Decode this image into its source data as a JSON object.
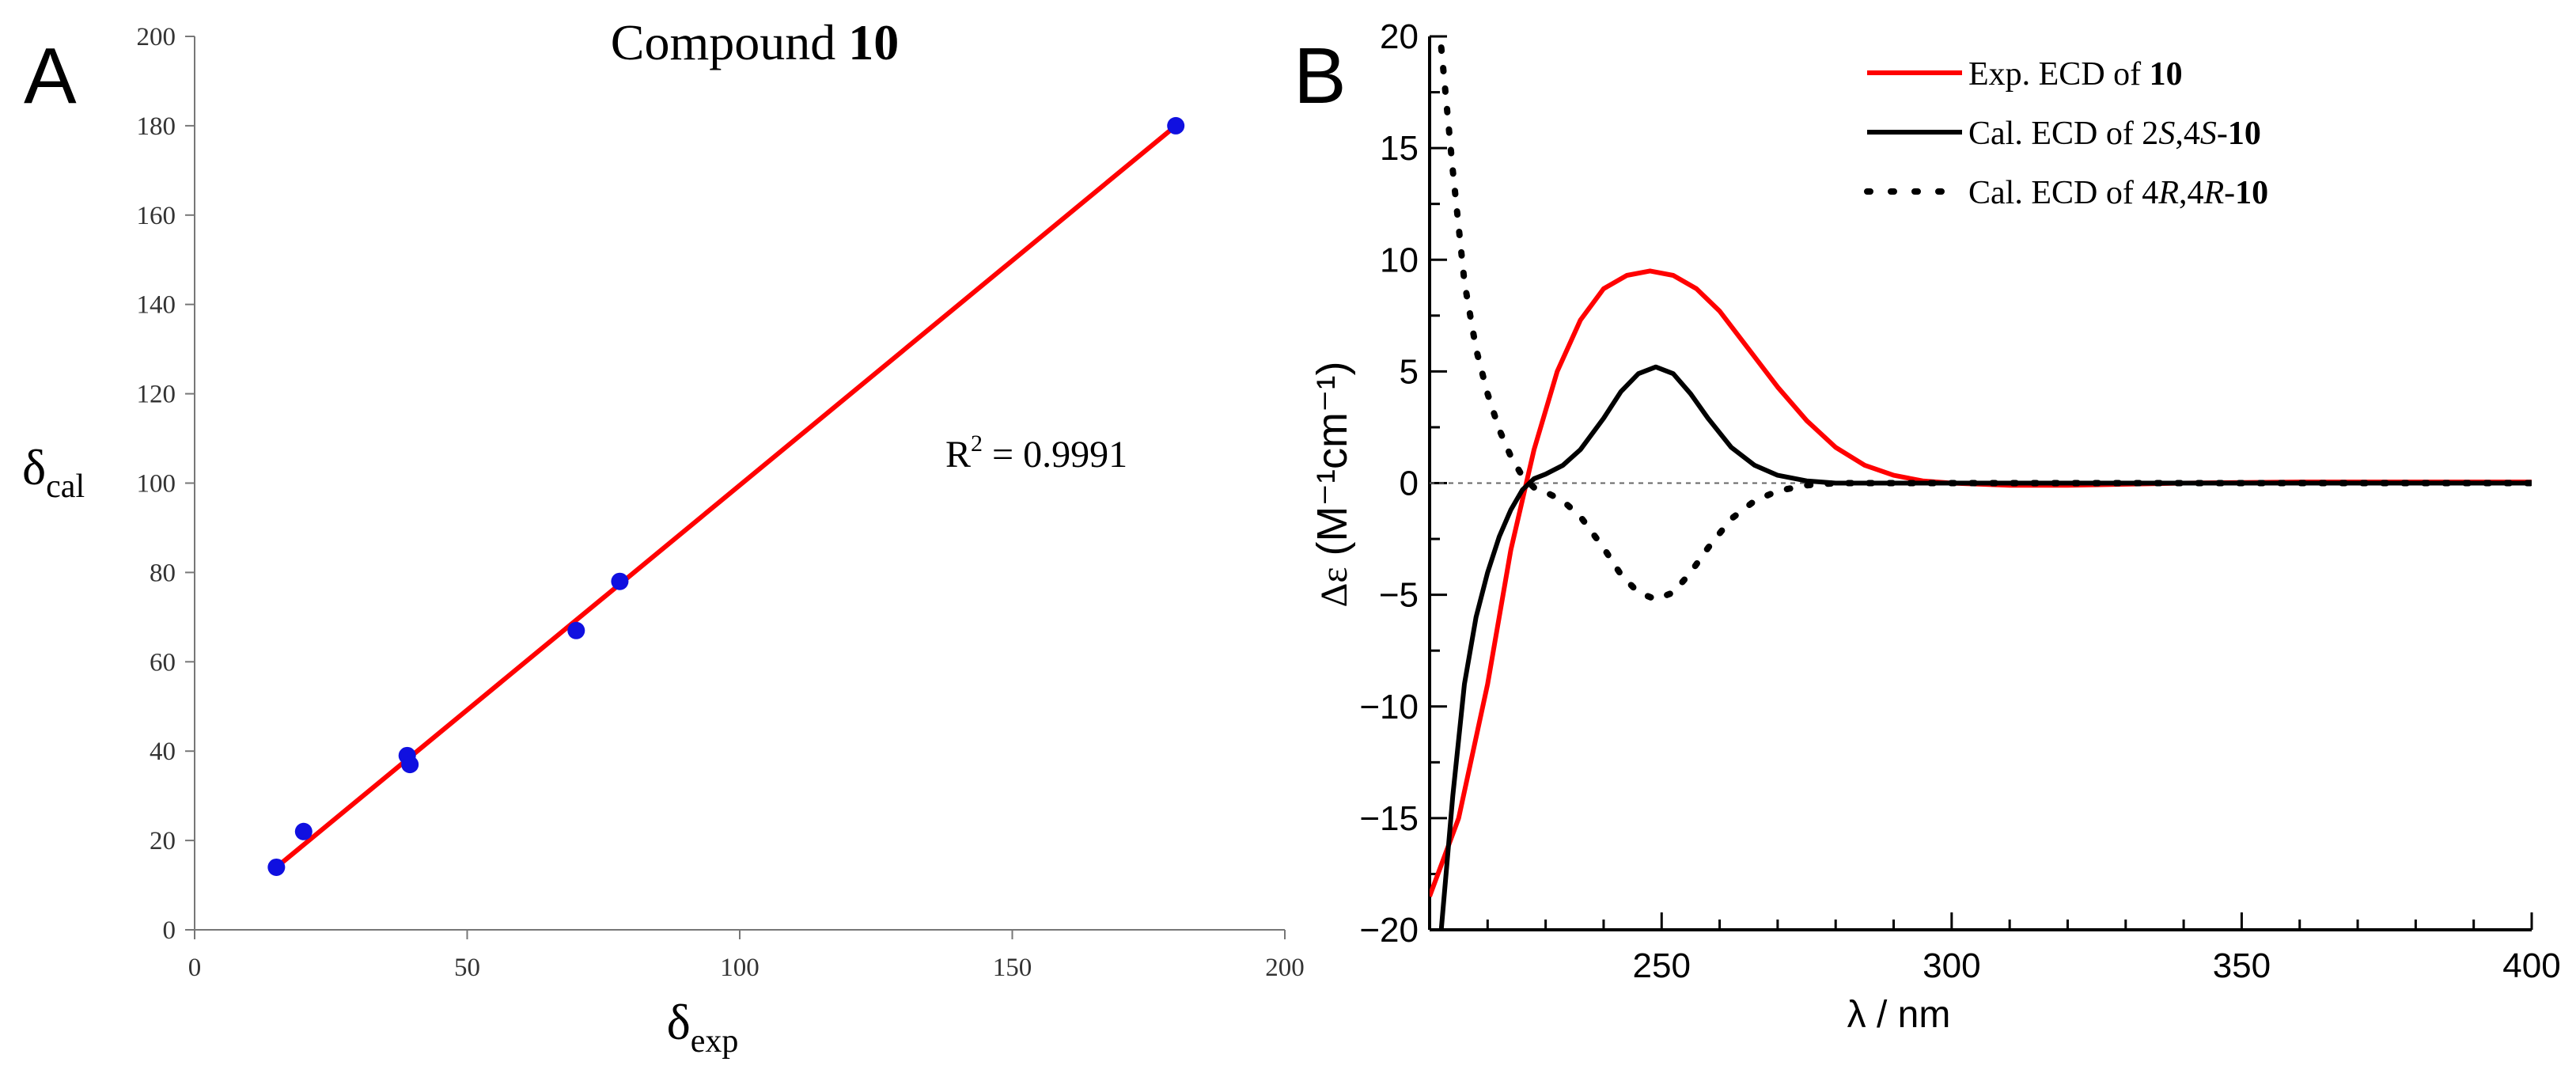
{
  "chart_data": [
    {
      "panel": "A",
      "type": "scatter",
      "title_prefix": "Compound ",
      "title_bold": "10",
      "xlabel_main": "δ",
      "xlabel_sub": "exp",
      "ylabel_main": "δ",
      "ylabel_sub": "cal",
      "xlim": [
        0,
        200
      ],
      "ylim": [
        0,
        200
      ],
      "xticks": [
        0,
        50,
        100,
        150,
        200
      ],
      "yticks": [
        0,
        20,
        40,
        60,
        80,
        100,
        120,
        140,
        160,
        180,
        200
      ],
      "points": [
        {
          "x": 15,
          "y": 14
        },
        {
          "x": 20,
          "y": 22
        },
        {
          "x": 39,
          "y": 39
        },
        {
          "x": 39.5,
          "y": 37
        },
        {
          "x": 70,
          "y": 67
        },
        {
          "x": 78,
          "y": 78
        },
        {
          "x": 180,
          "y": 180
        }
      ],
      "fit_line": {
        "x": [
          15,
          180
        ],
        "y": [
          14,
          180
        ]
      },
      "annotation_base": "R",
      "annotation_sup": "2",
      "annotation_rest": " = 0.9991",
      "point_color": "#1010e0",
      "line_color": "#ff0000"
    },
    {
      "panel": "B",
      "type": "line",
      "xlabel": "λ / nm",
      "ylabel_prefix": "Δε",
      "ylabel_unit": "(M⁻¹cm⁻¹)",
      "xlim": [
        210,
        400
      ],
      "ylim": [
        -20,
        20
      ],
      "xticks": [
        250,
        300,
        350,
        400
      ],
      "yticks": [
        -20,
        -15,
        -10,
        -5,
        0,
        5,
        10,
        15,
        20
      ],
      "series": [
        {
          "name_parts": [
            [
              "Exp. ECD of ",
              ""
            ],
            [
              "10",
              "b"
            ]
          ],
          "color": "#ff0000",
          "style": "solid",
          "x": [
            210,
            215,
            220,
            224,
            228,
            232,
            236,
            240,
            244,
            248,
            252,
            256,
            260,
            265,
            270,
            275,
            280,
            285,
            290,
            295,
            300,
            310,
            320,
            340,
            360,
            380,
            400
          ],
          "y": [
            -18.5,
            -15,
            -9,
            -3,
            1.5,
            5,
            7.3,
            8.7,
            9.3,
            9.5,
            9.3,
            8.7,
            7.7,
            6.0,
            4.3,
            2.8,
            1.6,
            0.8,
            0.35,
            0.1,
            0,
            -0.1,
            -0.1,
            0,
            0.05,
            0.05,
            0.05
          ]
        },
        {
          "name_parts": [
            [
              "Cal. ECD of 2",
              ""
            ],
            [
              "S",
              "i"
            ],
            [
              ",4",
              ""
            ],
            [
              "S",
              "i"
            ],
            [
              "-",
              ""
            ],
            [
              "10",
              "b"
            ]
          ],
          "color": "#000000",
          "style": "solid",
          "x": [
            212,
            214,
            216,
            218,
            220,
            222,
            224,
            226,
            228,
            230,
            233,
            236,
            240,
            243,
            246,
            249,
            252,
            255,
            258,
            262,
            266,
            270,
            275,
            280,
            290,
            300,
            320,
            350,
            400
          ],
          "y": [
            -20,
            -14,
            -9,
            -6,
            -4,
            -2.4,
            -1.2,
            -0.3,
            0.2,
            0.4,
            0.8,
            1.5,
            2.9,
            4.1,
            4.9,
            5.2,
            4.9,
            4.0,
            2.9,
            1.6,
            0.8,
            0.35,
            0.1,
            0,
            0,
            0,
            0,
            0,
            0
          ]
        },
        {
          "name_parts": [
            [
              "Cal. ECD of 4",
              ""
            ],
            [
              "R",
              "i"
            ],
            [
              ",4",
              ""
            ],
            [
              "R",
              "i"
            ],
            [
              "-",
              ""
            ],
            [
              "10",
              "b"
            ]
          ],
          "color": "#000000",
          "style": "dotted",
          "x": [
            212,
            214,
            216,
            218,
            220,
            222,
            224,
            226,
            228,
            230,
            233,
            236,
            240,
            243,
            246,
            249,
            252,
            255,
            258,
            262,
            266,
            270,
            275,
            280,
            290,
            300,
            320,
            350,
            400
          ],
          "y": [
            19.5,
            14,
            9,
            6,
            4,
            2.4,
            1.2,
            0.3,
            -0.2,
            -0.4,
            -0.8,
            -1.5,
            -2.9,
            -4.1,
            -4.9,
            -5.2,
            -4.9,
            -4.0,
            -2.9,
            -1.6,
            -0.8,
            -0.35,
            -0.1,
            0,
            0,
            0,
            0,
            0,
            0
          ]
        }
      ]
    }
  ]
}
